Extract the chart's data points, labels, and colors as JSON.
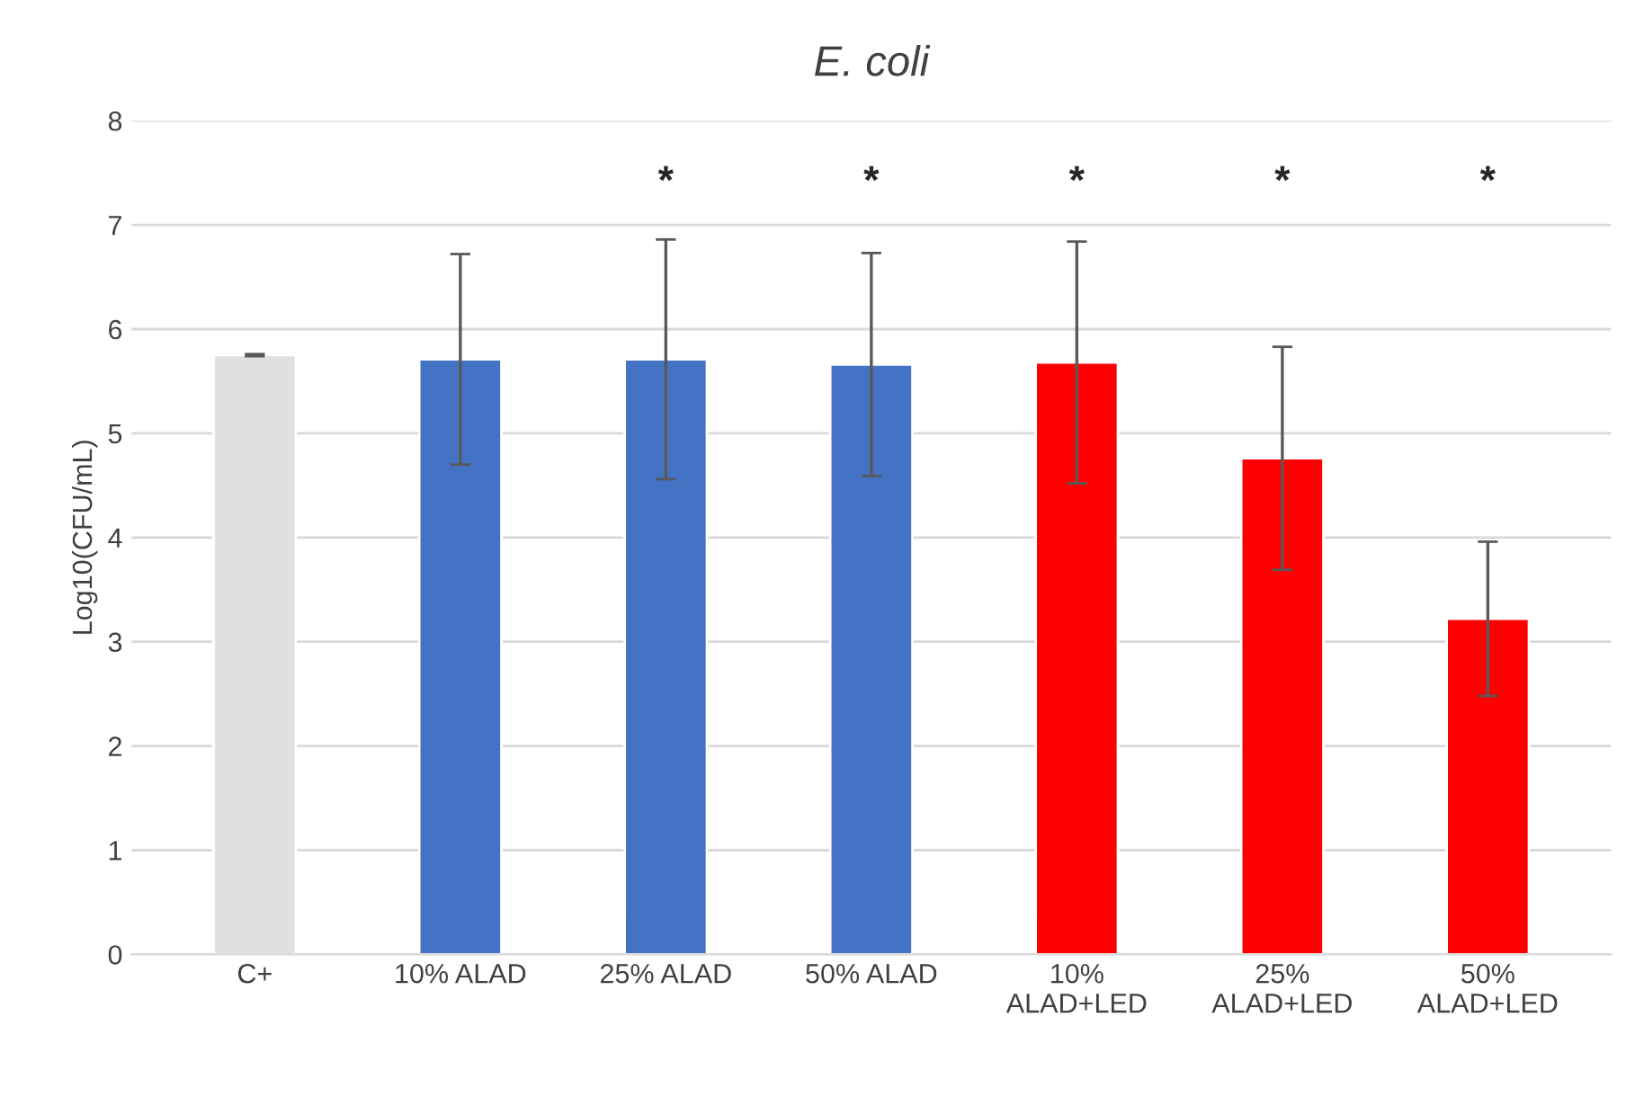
{
  "chart_data": {
    "type": "bar",
    "title": "E. coli",
    "ylabel": "Log10(CFU/mL)",
    "categories": [
      "C+",
      "10% ALAD",
      "25% ALAD",
      "50% ALAD",
      "10%\nALAD+LED",
      "25%\nALAD+LED",
      "50%\nALAD+LED"
    ],
    "values": [
      5.75,
      5.71,
      5.71,
      5.66,
      5.68,
      4.76,
      3.22
    ],
    "errors": [
      0.01,
      1.01,
      1.15,
      1.07,
      1.16,
      1.07,
      0.74
    ],
    "colors": [
      "#e0e0e0",
      "#4472c4",
      "#4472c4",
      "#4472c4",
      "#ff0000",
      "#ff0000",
      "#ff0000"
    ],
    "annotations": [
      "*",
      "*",
      "*",
      "*",
      "*"
    ],
    "ylim": [
      0,
      8
    ],
    "yticks": [
      0,
      1,
      2,
      3,
      4,
      5,
      6,
      7,
      8
    ],
    "grid": "y"
  }
}
